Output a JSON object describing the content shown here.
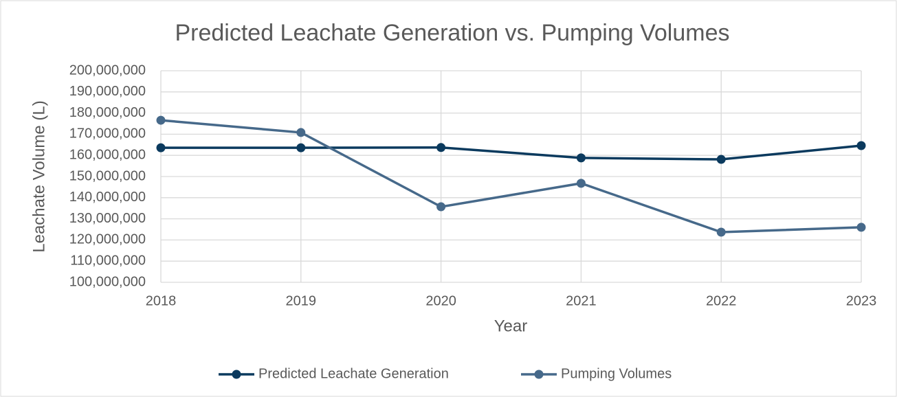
{
  "chart_data": {
    "type": "line",
    "title": "Predicted Leachate Generation vs. Pumping Volumes",
    "x_label": "Year",
    "y_label": "Leachate Volume (L)",
    "x": [
      2018,
      2019,
      2020,
      2021,
      2022,
      2023
    ],
    "series": [
      {
        "name": "Predicted Leachate Generation",
        "color": "#0b3a5e",
        "values": [
          163600000,
          163600000,
          163700000,
          158800000,
          158100000,
          164600000
        ]
      },
      {
        "name": "Pumping Volumes",
        "color": "#46698a",
        "values": [
          176600000,
          170800000,
          135700000,
          146800000,
          123700000,
          126000000
        ]
      }
    ],
    "xlim": [
      2018,
      2023
    ],
    "xticks": [
      2018,
      2019,
      2020,
      2021,
      2022,
      2023
    ],
    "ylim": [
      100000000,
      200000000
    ],
    "yticks": [
      {
        "value": 100000000,
        "label": "100,000,000"
      },
      {
        "value": 110000000,
        "label": "110,000,000"
      },
      {
        "value": 120000000,
        "label": "120,000,000"
      },
      {
        "value": 130000000,
        "label": "130,000,000"
      },
      {
        "value": 140000000,
        "label": "140,000,000"
      },
      {
        "value": 150000000,
        "label": "150,000,000"
      },
      {
        "value": 160000000,
        "label": "160,000,000"
      },
      {
        "value": 170000000,
        "label": "170,000,000"
      },
      {
        "value": 180000000,
        "label": "180,000,000"
      },
      {
        "value": 190000000,
        "label": "190,000,000"
      },
      {
        "value": 200000000,
        "label": "200,000,000"
      }
    ],
    "grid": true,
    "legend": "bottom"
  }
}
